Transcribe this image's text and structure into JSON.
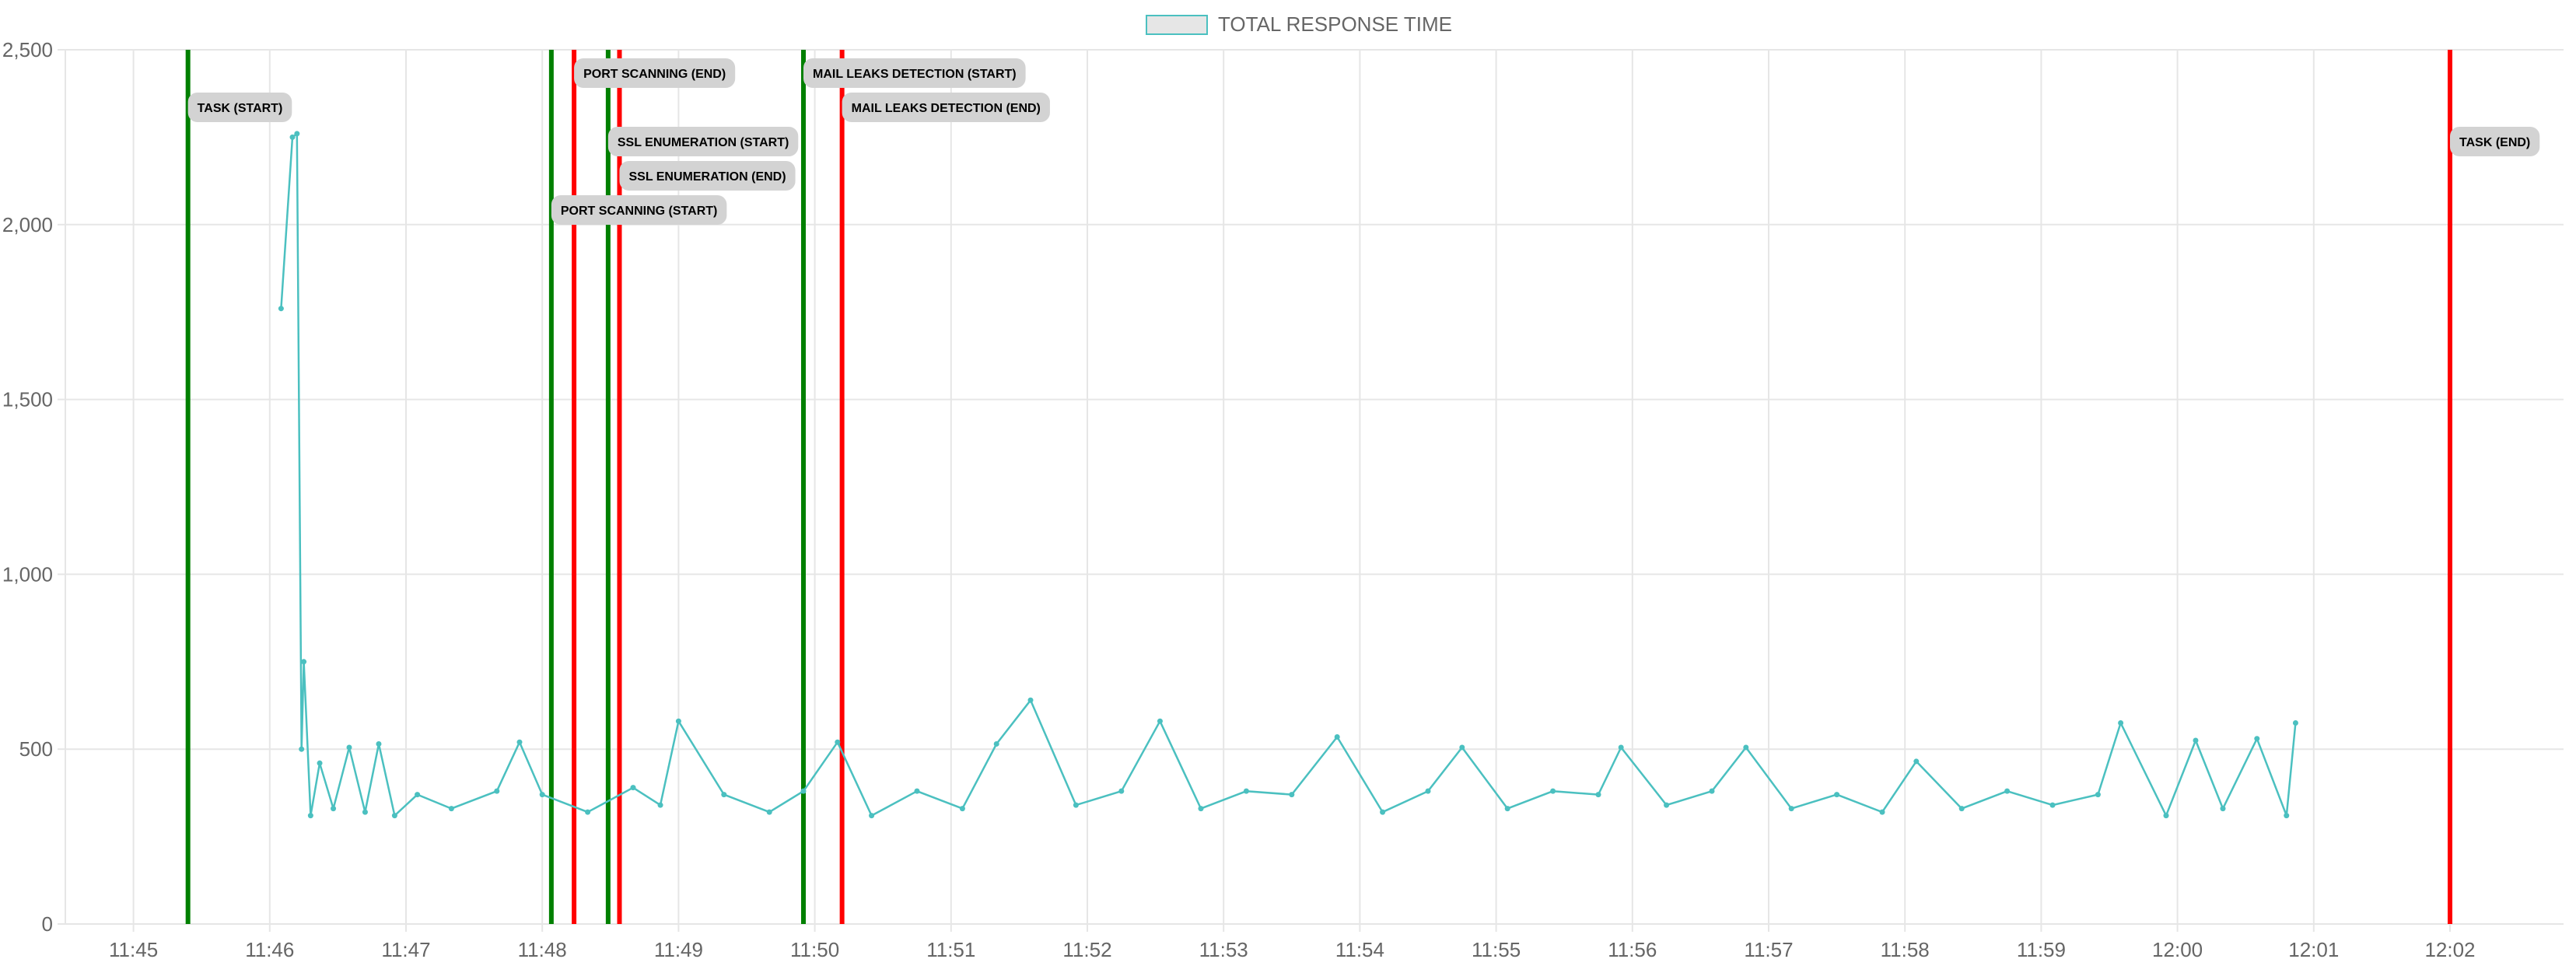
{
  "chart_data": {
    "type": "line",
    "title": "",
    "xlabel": "",
    "ylabel": "",
    "x_ticks": [
      "11:45",
      "11:46",
      "11:47",
      "11:48",
      "11:49",
      "11:50",
      "11:51",
      "11:52",
      "11:53",
      "11:54",
      "11:55",
      "11:56",
      "11:57",
      "11:58",
      "11:59",
      "12:00",
      "12:01",
      "12:02"
    ],
    "y_ticks": [
      "0",
      "500",
      "1,000",
      "1,500",
      "2,000",
      "2,500"
    ],
    "ylim": [
      0,
      2500
    ],
    "xlim": [
      "11:44:30",
      "12:02:50"
    ],
    "grid": true,
    "legend": {
      "position": "top-center",
      "entries": [
        "TOTAL RESPONSE TIME"
      ]
    },
    "series": [
      {
        "name": "TOTAL RESPONSE TIME",
        "color": "#4bc0c0",
        "x": [
          "11:46:05",
          "11:46:10",
          "11:46:12",
          "11:46:14",
          "11:46:15",
          "11:46:18",
          "11:46:22",
          "11:46:28",
          "11:46:35",
          "11:46:42",
          "11:46:48",
          "11:46:55",
          "11:47:05",
          "11:47:20",
          "11:47:40",
          "11:47:50",
          "11:48:00",
          "11:48:20",
          "11:48:40",
          "11:48:52",
          "11:49:00",
          "11:49:20",
          "11:49:40",
          "11:49:55",
          "11:50:10",
          "11:50:25",
          "11:50:45",
          "11:51:05",
          "11:51:20",
          "11:51:35",
          "11:51:55",
          "11:52:15",
          "11:52:32",
          "11:52:50",
          "11:53:10",
          "11:53:30",
          "11:53:50",
          "11:54:10",
          "11:54:30",
          "11:54:45",
          "11:55:05",
          "11:55:25",
          "11:55:45",
          "11:55:55",
          "11:56:15",
          "11:56:35",
          "11:56:50",
          "11:57:10",
          "11:57:30",
          "11:57:50",
          "11:58:05",
          "11:58:25",
          "11:58:45",
          "11:59:05",
          "11:59:25",
          "11:59:35",
          "11:59:55",
          "12:00:08",
          "12:00:20",
          "12:00:35",
          "12:00:48",
          "12:00:52"
        ],
        "values": [
          1760,
          2250,
          2260,
          500,
          750,
          310,
          460,
          330,
          505,
          320,
          515,
          310,
          370,
          330,
          380,
          520,
          370,
          320,
          390,
          340,
          580,
          370,
          320,
          380,
          520,
          310,
          380,
          330,
          515,
          640,
          340,
          380,
          580,
          330,
          380,
          370,
          535,
          320,
          380,
          505,
          330,
          380,
          370,
          505,
          340,
          380,
          505,
          330,
          370,
          320,
          465,
          330,
          380,
          340,
          370,
          575,
          310,
          525,
          330,
          530,
          310,
          575
        ]
      }
    ],
    "annotations": [
      {
        "label": "TASK (START)",
        "time": "11:45:24",
        "color": "#008000",
        "row": 2
      },
      {
        "label": "PORT SCANNING (START)",
        "time": "11:48:04",
        "color": "#008000",
        "row": 5
      },
      {
        "label": "PORT SCANNING (END)",
        "time": "11:48:14",
        "color": "#ff0000",
        "row": 1
      },
      {
        "label": "SSL ENUMERATION (START)",
        "time": "11:48:29",
        "color": "#008000",
        "row": 3
      },
      {
        "label": "SSL ENUMERATION (END)",
        "time": "11:48:34",
        "color": "#ff0000",
        "row": 4
      },
      {
        "label": "MAIL LEAKS DETECTION (START)",
        "time": "11:49:55",
        "color": "#008000",
        "row": 1
      },
      {
        "label": "MAIL LEAKS DETECTION (END)",
        "time": "11:50:12",
        "color": "#ff0000",
        "row": 2
      },
      {
        "label": "TASK (END)",
        "time": "12:02:00",
        "color": "#ff0000",
        "row": 3
      }
    ],
    "colors": {
      "grid": "#e6e6e6",
      "axis": "#666666",
      "legend_fill": "#e6e6e6",
      "legend_stroke": "#4bc0c0",
      "label_fill": "#d3d3d3"
    }
  }
}
